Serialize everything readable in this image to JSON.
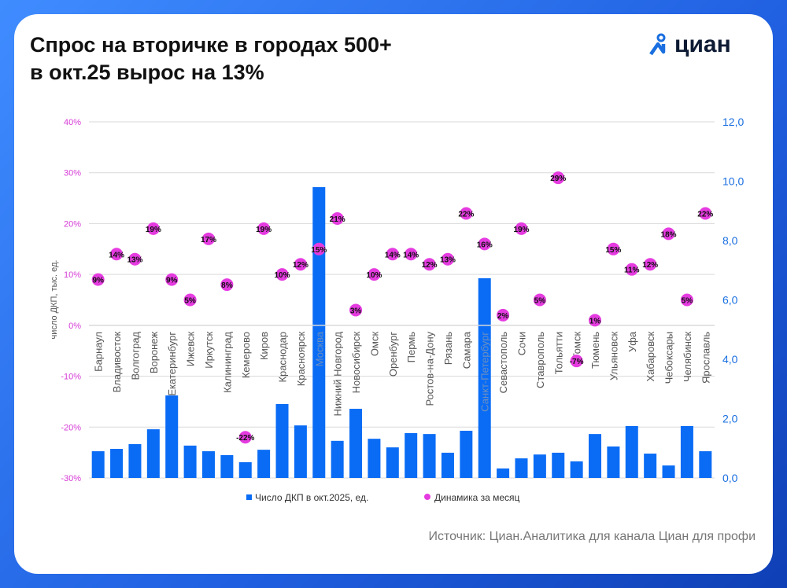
{
  "title_line1": "Спрос на вторичке в городах 500+",
  "title_line2": "в окт.25 вырос на 13%",
  "logo": "циан",
  "source": "Источник: Циан.Аналитика для канала Циан для профи",
  "colors": {
    "bars": "#0a6cf5",
    "dots": "#e53be0",
    "left_axis": "#d63bd6",
    "right_axis": "#1a6fe0"
  },
  "chart_data": {
    "type": "bar+scatter",
    "ylabel_left": "число ДКП, тыс. ед.",
    "left_axis": {
      "ylim": [
        -30,
        40
      ],
      "ticks": [
        "40%",
        "30%",
        "20%",
        "10%",
        "0%",
        "-10%",
        "-20%",
        "-30%"
      ],
      "tick_values": [
        40,
        30,
        20,
        10,
        0,
        -10,
        -20,
        -30
      ]
    },
    "right_axis": {
      "ylim": [
        0,
        12
      ],
      "ticks": [
        "12,0",
        "10,0",
        "8,0",
        "6,0",
        "4,0",
        "2,0",
        "0,0"
      ],
      "tick_values": [
        12,
        10,
        8,
        6,
        4,
        2,
        0
      ]
    },
    "grid": true,
    "legend_position": "bottom",
    "categories": [
      "Барнаул",
      "Владивосток",
      "Волгоград",
      "Воронеж",
      "Екатеринбург",
      "Ижевск",
      "Иркутск",
      "Калининград",
      "Кемерово",
      "Киров",
      "Краснодар",
      "Красноярск",
      "Москва",
      "Нижний Новгород",
      "Новосибирск",
      "Омск",
      "Оренбург",
      "Пермь",
      "Ростов-на-Дону",
      "Рязань",
      "Самара",
      "Санкт-Петербург",
      "Севастополь",
      "Сочи",
      "Ставрополь",
      "Тольятти",
      "Томск",
      "Тюмень",
      "Ульяновск",
      "Уфа",
      "Хабаровск",
      "Чебоксары",
      "Челябинск",
      "Ярославль"
    ],
    "series": [
      {
        "name": "Число ДКП в окт.2025, ед.",
        "type": "bar",
        "axis": "right",
        "values": [
          0.9,
          0.98,
          1.14,
          1.64,
          2.78,
          1.09,
          0.9,
          0.77,
          0.53,
          0.95,
          2.49,
          1.77,
          9.8,
          1.25,
          2.33,
          1.32,
          1.03,
          1.51,
          1.48,
          0.85,
          1.59,
          6.73,
          0.32,
          0.66,
          0.79,
          0.85,
          0.56,
          1.48,
          1.06,
          1.75,
          0.82,
          0.42,
          1.75,
          0.9
        ]
      },
      {
        "name": "Динамика за месяц",
        "type": "scatter",
        "axis": "left",
        "values": [
          9,
          14,
          13,
          19,
          9,
          5,
          17,
          8,
          -22,
          19,
          10,
          12,
          15,
          21,
          3,
          10,
          14,
          14,
          12,
          13,
          22,
          16,
          2,
          19,
          5,
          29,
          -7,
          1,
          15,
          11,
          12,
          18,
          5,
          22
        ],
        "labels": [
          "9%",
          "14%",
          "13%",
          "19%",
          "9%",
          "5%",
          "17%",
          "8%",
          "-22%",
          "19%",
          "10%",
          "12%",
          "15%",
          "21%",
          "3%",
          "10%",
          "14%",
          "14%",
          "12%",
          "13%",
          "22%",
          "16%",
          "2%",
          "19%",
          "5%",
          "29%",
          "-7%",
          "1%",
          "15%",
          "11%",
          "12%",
          "18%",
          "5%",
          "22%"
        ]
      }
    ]
  }
}
